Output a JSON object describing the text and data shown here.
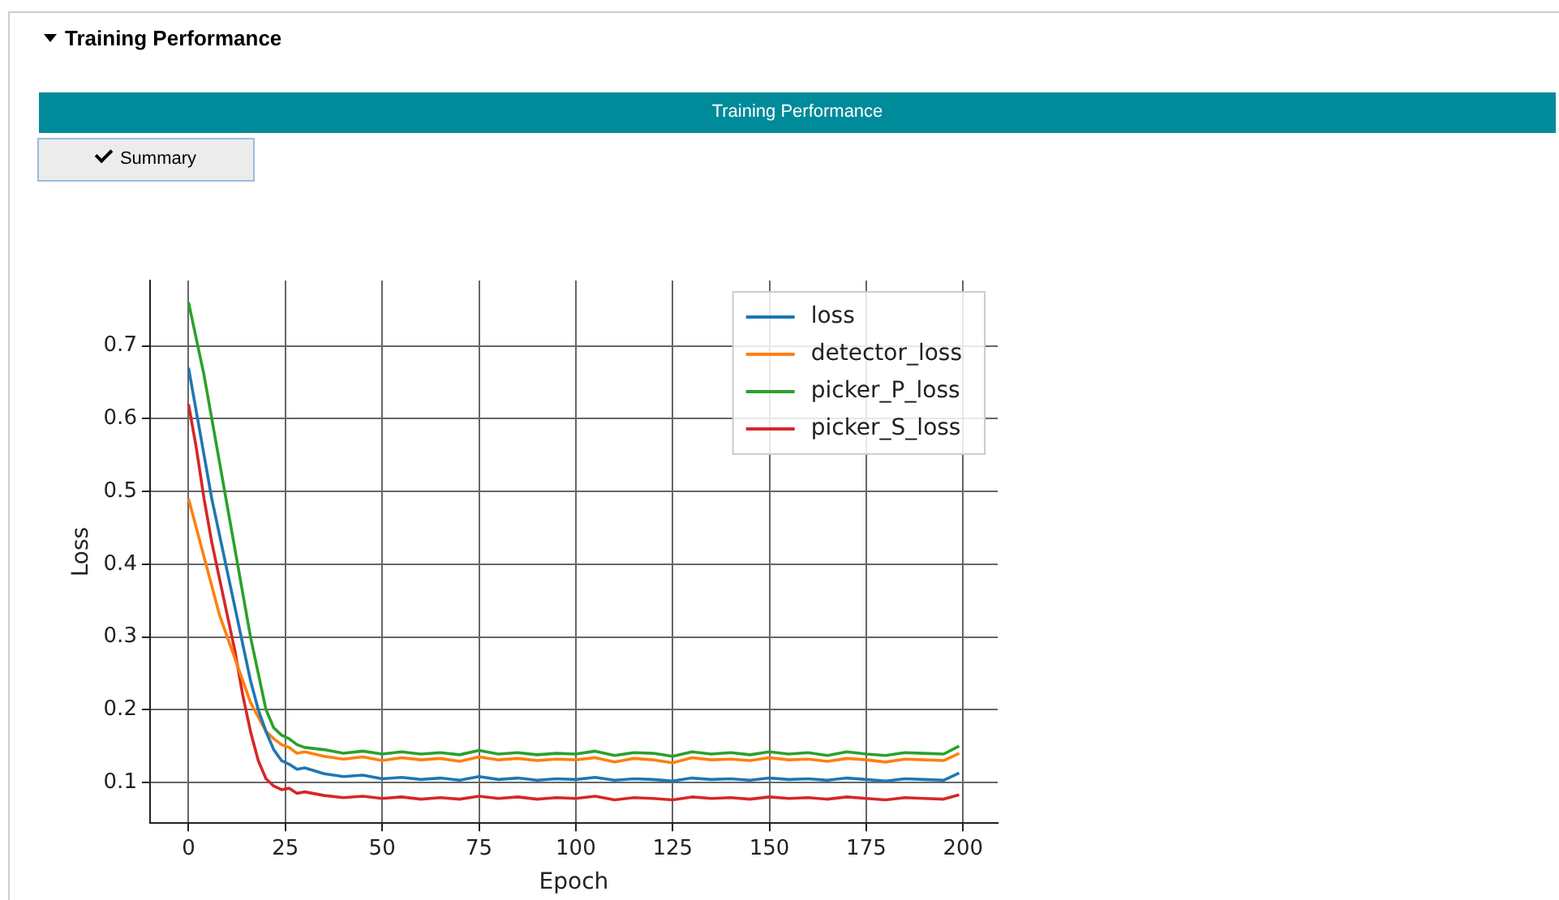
{
  "chart_data": {
    "type": "line",
    "title": "Training Performance",
    "annotations": [
      "Training Performance",
      "Summary"
    ],
    "xlabel": "Epoch",
    "ylabel": "Loss",
    "x": [
      0,
      2,
      4,
      6,
      8,
      10,
      12,
      14,
      16,
      18,
      20,
      22,
      24,
      26,
      28,
      30,
      35,
      40,
      45,
      50,
      55,
      60,
      65,
      70,
      75,
      80,
      85,
      90,
      95,
      100,
      105,
      110,
      115,
      120,
      125,
      130,
      135,
      140,
      145,
      150,
      155,
      160,
      165,
      170,
      175,
      180,
      185,
      190,
      195,
      199
    ],
    "series": [
      {
        "name": "loss",
        "color": "#1f77b4",
        "values": [
          0.67,
          0.61,
          0.55,
          0.49,
          0.44,
          0.39,
          0.34,
          0.29,
          0.24,
          0.2,
          0.17,
          0.145,
          0.13,
          0.125,
          0.118,
          0.12,
          0.112,
          0.108,
          0.11,
          0.105,
          0.107,
          0.104,
          0.106,
          0.103,
          0.108,
          0.104,
          0.106,
          0.103,
          0.105,
          0.104,
          0.107,
          0.103,
          0.105,
          0.104,
          0.102,
          0.106,
          0.104,
          0.105,
          0.103,
          0.106,
          0.104,
          0.105,
          0.103,
          0.106,
          0.104,
          0.102,
          0.105,
          0.104,
          0.103,
          0.113
        ]
      },
      {
        "name": "detector_loss",
        "color": "#ff7f0e",
        "values": [
          0.49,
          0.45,
          0.41,
          0.37,
          0.33,
          0.3,
          0.27,
          0.24,
          0.21,
          0.19,
          0.17,
          0.16,
          0.152,
          0.148,
          0.14,
          0.142,
          0.136,
          0.132,
          0.135,
          0.13,
          0.134,
          0.131,
          0.133,
          0.129,
          0.135,
          0.131,
          0.133,
          0.13,
          0.132,
          0.131,
          0.134,
          0.128,
          0.133,
          0.131,
          0.127,
          0.134,
          0.131,
          0.132,
          0.13,
          0.134,
          0.131,
          0.132,
          0.129,
          0.133,
          0.131,
          0.128,
          0.132,
          0.131,
          0.13,
          0.14
        ]
      },
      {
        "name": "picker_P_loss",
        "color": "#2ca02c",
        "values": [
          0.76,
          0.71,
          0.66,
          0.6,
          0.54,
          0.48,
          0.42,
          0.36,
          0.3,
          0.25,
          0.2,
          0.175,
          0.165,
          0.16,
          0.152,
          0.148,
          0.145,
          0.14,
          0.143,
          0.139,
          0.142,
          0.139,
          0.141,
          0.138,
          0.144,
          0.139,
          0.141,
          0.138,
          0.14,
          0.139,
          0.143,
          0.137,
          0.141,
          0.14,
          0.136,
          0.142,
          0.139,
          0.141,
          0.138,
          0.142,
          0.139,
          0.141,
          0.137,
          0.142,
          0.139,
          0.137,
          0.141,
          0.14,
          0.139,
          0.15
        ]
      },
      {
        "name": "picker_S_loss",
        "color": "#d62728",
        "values": [
          0.62,
          0.56,
          0.49,
          0.43,
          0.38,
          0.33,
          0.28,
          0.22,
          0.17,
          0.13,
          0.105,
          0.095,
          0.09,
          0.092,
          0.085,
          0.087,
          0.082,
          0.079,
          0.081,
          0.078,
          0.08,
          0.077,
          0.079,
          0.077,
          0.081,
          0.078,
          0.08,
          0.077,
          0.079,
          0.078,
          0.081,
          0.076,
          0.079,
          0.078,
          0.076,
          0.08,
          0.078,
          0.079,
          0.077,
          0.08,
          0.078,
          0.079,
          0.077,
          0.08,
          0.078,
          0.076,
          0.079,
          0.078,
          0.077,
          0.083
        ]
      }
    ],
    "xlim": [
      -9.95,
      208.95
    ],
    "xticks": [
      0,
      25,
      50,
      75,
      100,
      125,
      150,
      175,
      200
    ],
    "ylim": [
      0.044,
      0.79
    ],
    "yticks": [
      0.1,
      0.2,
      0.3,
      0.4,
      0.5,
      0.6,
      0.7
    ],
    "grid": true,
    "legend": "top right",
    "marker": "none",
    "line_style": "solid"
  }
}
